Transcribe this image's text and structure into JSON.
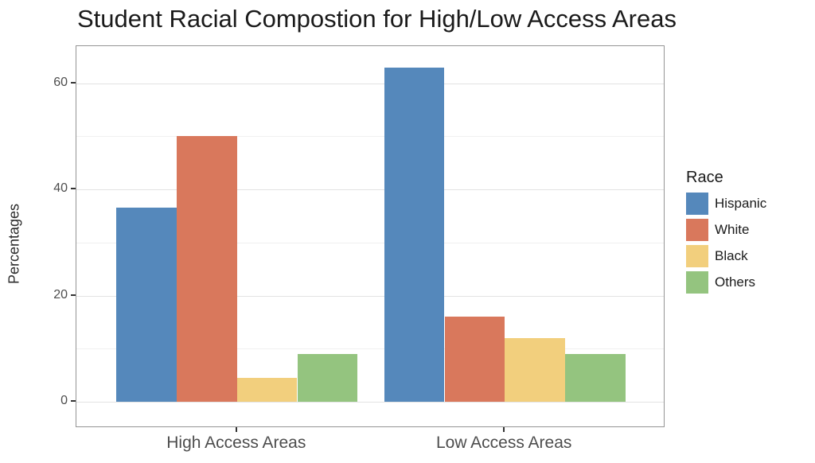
{
  "title": "Student Racial Compostion for High/Low Access Areas",
  "chart_data": {
    "type": "bar",
    "title": "Student Racial Compostion for High/Low Access Areas",
    "categories": [
      "High Access Areas",
      "Low Access Areas"
    ],
    "series": [
      {
        "name": "Hispanic",
        "color": "#5588BB",
        "values": [
          36.5,
          63
        ]
      },
      {
        "name": "White",
        "color": "#D9785C",
        "values": [
          50,
          16
        ]
      },
      {
        "name": "Black",
        "color": "#F2CF7D",
        "values": [
          4.5,
          12
        ]
      },
      {
        "name": "Others",
        "color": "#94C47F",
        "values": [
          9,
          9
        ]
      }
    ],
    "xlabel": "",
    "ylabel": "Percentages",
    "ylim": [
      0,
      67
    ],
    "yticks": [
      0,
      20,
      40,
      60
    ],
    "minor_gridlines": [
      10,
      30,
      50
    ],
    "grid": true,
    "legend_title": "Race",
    "legend_position": "right"
  }
}
